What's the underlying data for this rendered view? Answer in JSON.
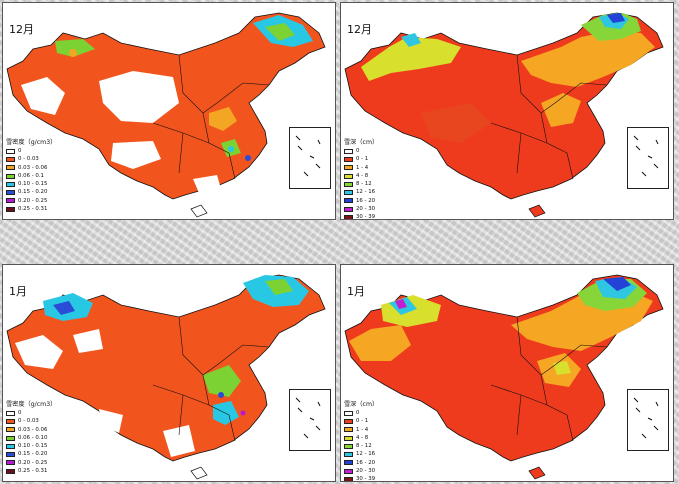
{
  "panels": [
    {
      "month": "12月",
      "legend": {
        "title": "雪密度（g/cm3）",
        "items": [
          {
            "label": "0",
            "color": "#ffffff"
          },
          {
            "label": "0 - 0.03",
            "color": "#f2541e"
          },
          {
            "label": "0.03 - 0.06",
            "color": "#f3a623"
          },
          {
            "label": "0.06 - 0.1",
            "color": "#7cd133"
          },
          {
            "label": "0.10 - 0.15",
            "color": "#28c8e4"
          },
          {
            "label": "0.15 - 0.20",
            "color": "#2a4cd6"
          },
          {
            "label": "0.20 - 0.25",
            "color": "#b21ad6"
          },
          {
            "label": "0.25 - 0.31",
            "color": "#6a0f1a"
          }
        ]
      }
    },
    {
      "month": "12月",
      "legend": {
        "title": "雪深（cm）",
        "items": [
          {
            "label": "0",
            "color": "#ffffff"
          },
          {
            "label": "0 - 1",
            "color": "#ef3b1d"
          },
          {
            "label": "1 - 4",
            "color": "#f5a623"
          },
          {
            "label": "4 - 8",
            "color": "#d8df2c"
          },
          {
            "label": "8 - 12",
            "color": "#86d63a"
          },
          {
            "label": "12 - 16",
            "color": "#2ec6e0"
          },
          {
            "label": "16 - 20",
            "color": "#2343d6"
          },
          {
            "label": "20 - 30",
            "color": "#c21fd0"
          },
          {
            "label": "30 - 39",
            "color": "#7a1216"
          }
        ]
      }
    },
    {
      "month": "1月",
      "legend": {
        "title": "雪密度（g/cm3）",
        "items": [
          {
            "label": "0",
            "color": "#ffffff"
          },
          {
            "label": "0 - 0.03",
            "color": "#f2541e"
          },
          {
            "label": "0.03 - 0.06",
            "color": "#f3a623"
          },
          {
            "label": "0.06 - 0.10",
            "color": "#7cd133"
          },
          {
            "label": "0.10 - 0.15",
            "color": "#28c8e4"
          },
          {
            "label": "0.15 - 0.20",
            "color": "#2a4cd6"
          },
          {
            "label": "0.20 - 0.25",
            "color": "#b21ad6"
          },
          {
            "label": "0.25 - 0.31",
            "color": "#6a0f1a"
          }
        ]
      }
    },
    {
      "month": "1月",
      "legend": {
        "title": "雪深（cm）",
        "items": [
          {
            "label": "0",
            "color": "#ffffff"
          },
          {
            "label": "0 - 1",
            "color": "#ef3b1d"
          },
          {
            "label": "1 - 4",
            "color": "#f5a623"
          },
          {
            "label": "4 - 8",
            "color": "#d8df2c"
          },
          {
            "label": "8 - 12",
            "color": "#86d63a"
          },
          {
            "label": "12 - 16",
            "color": "#2ec6e0"
          },
          {
            "label": "16 - 20",
            "color": "#2343d6"
          },
          {
            "label": "20 - 30",
            "color": "#c21fd0"
          },
          {
            "label": "30 - 39",
            "color": "#7a1216"
          }
        ]
      }
    }
  ]
}
